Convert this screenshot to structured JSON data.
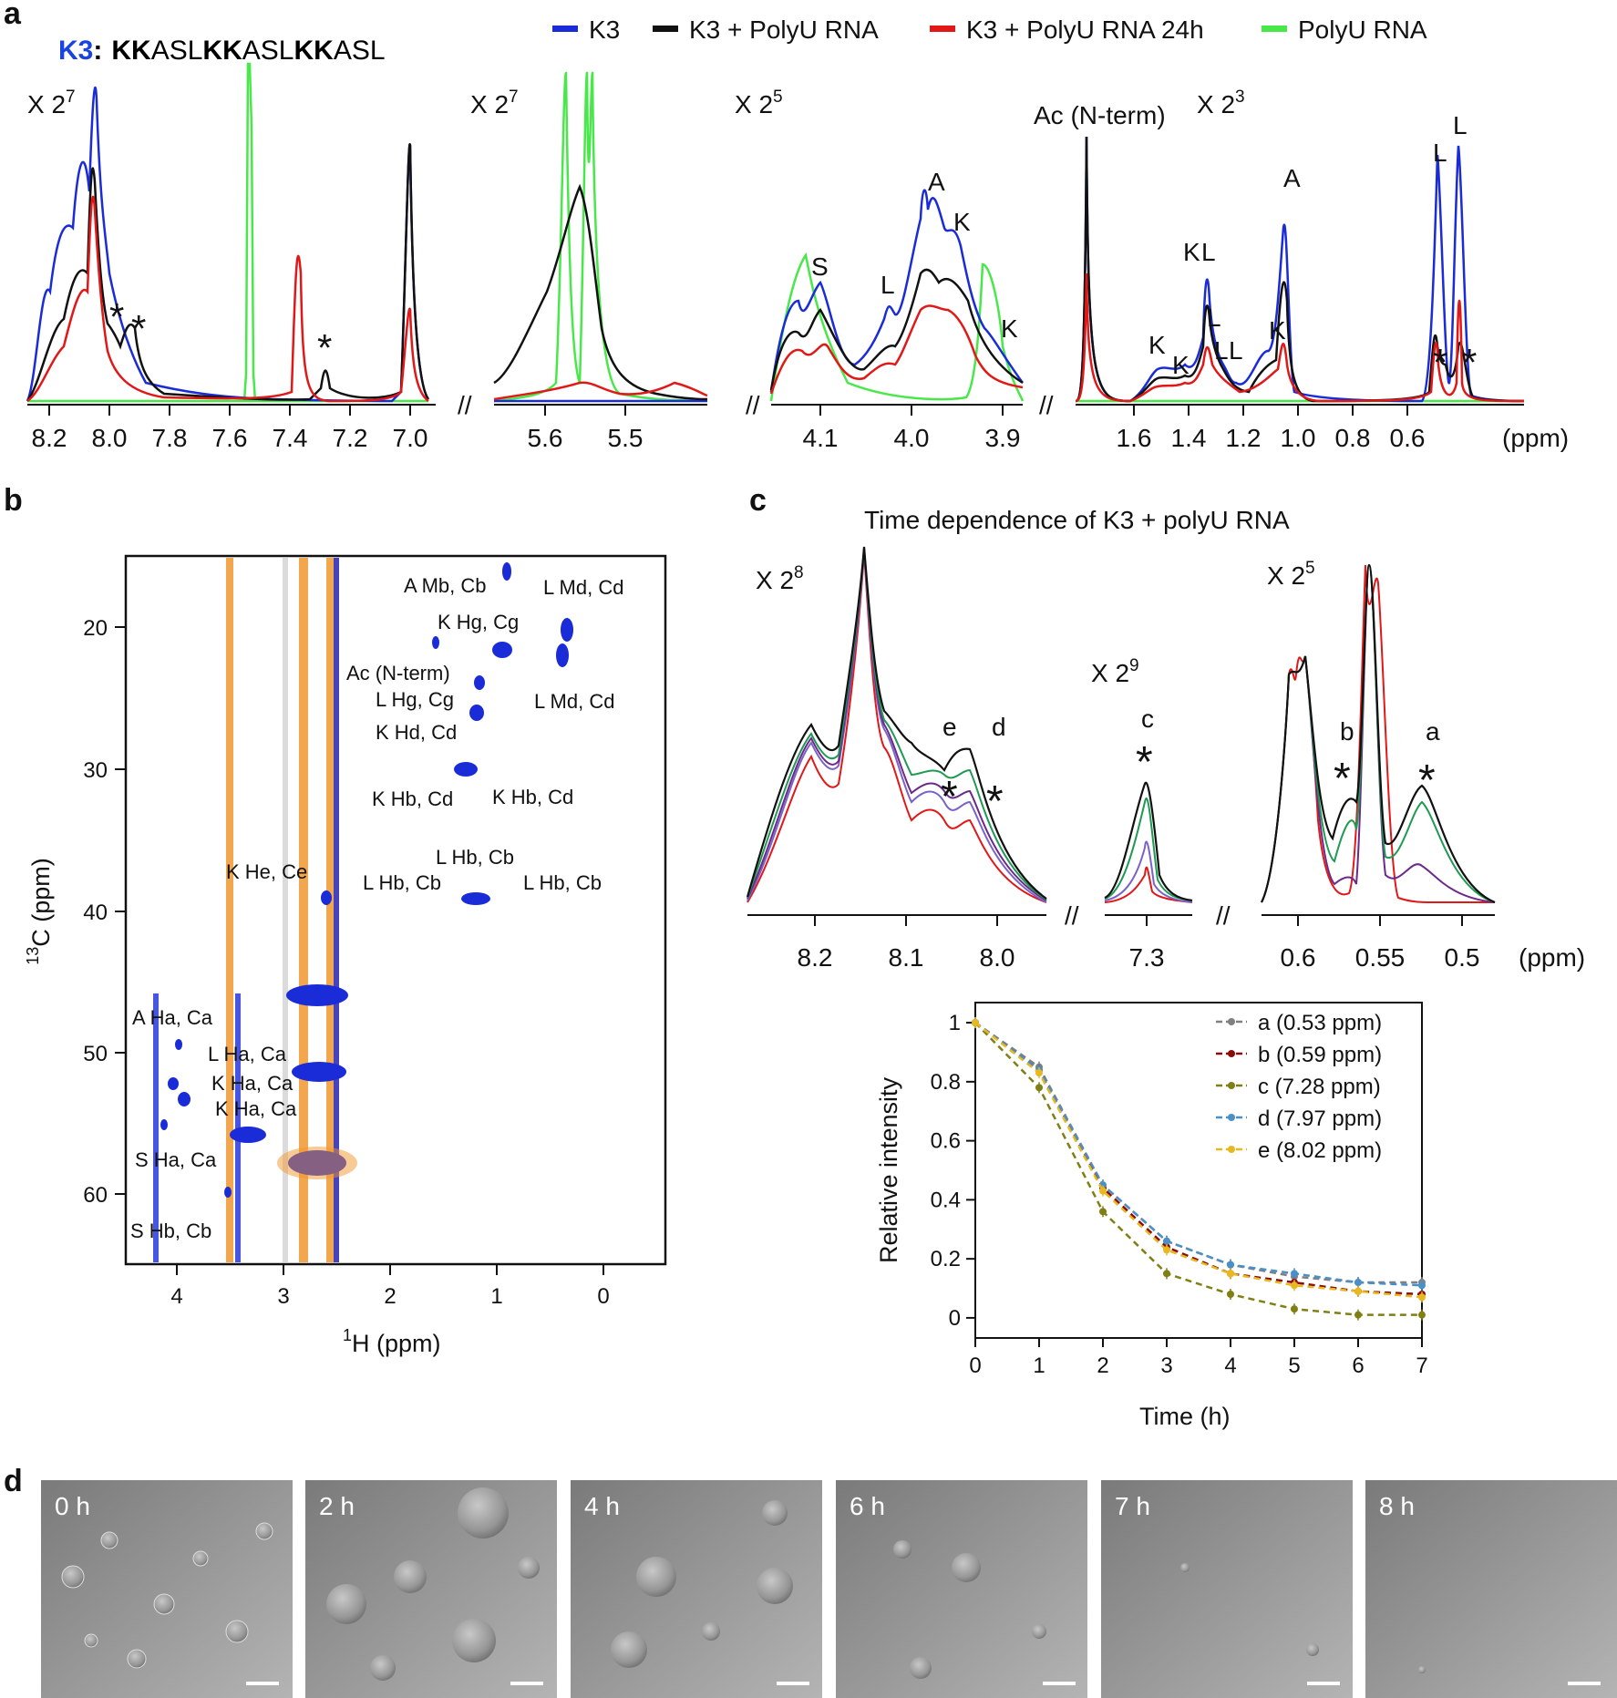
{
  "panel_labels": {
    "a": "a",
    "b": "b",
    "c": "c",
    "d": "d"
  },
  "colors": {
    "k3": "#1a2bd8",
    "k3_polyu": "#111111",
    "k3_polyu_24h": "#e01818",
    "polyu": "#49e84a",
    "orange": "#f0962e",
    "series_a": "#808080",
    "series_b": "#8b0a0a",
    "series_c": "#7f7f14",
    "series_d": "#4a90c8",
    "series_e": "#e8b820"
  },
  "panel_a": {
    "sequence_name": "K3",
    "sequence_colon": ":",
    "sequence": [
      "KK",
      "ASL",
      "KK",
      "ASL",
      "KK",
      "ASL"
    ],
    "legend": [
      "K3",
      "K3 + PolyU RNA",
      "K3 + PolyU RNA 24h",
      "PolyU RNA"
    ],
    "scale_labels": [
      {
        "base": "X 2",
        "exp": "7"
      },
      {
        "base": "X 2",
        "exp": "7"
      },
      {
        "base": "X 2",
        "exp": "5"
      },
      {
        "base": "X 2",
        "exp": "3"
      }
    ],
    "ac_label": "Ac (N-term)",
    "ppm_label": "(ppm)",
    "segment_ticks": [
      [
        "8.2",
        "8.0",
        "7.8",
        "7.6",
        "7.4",
        "7.2",
        "7.0"
      ],
      [
        "5.6",
        "5.5"
      ],
      [
        "4.1",
        "4.0",
        "3.9"
      ],
      [
        "1.6",
        "1.4",
        "1.2",
        "1.0",
        "0.8",
        "0.6"
      ]
    ],
    "residue_labels": [
      "S",
      "L",
      "A",
      "K",
      "K",
      "K",
      "K",
      "K",
      "L",
      "L",
      "L",
      "L",
      "K",
      "A",
      "L",
      "L"
    ],
    "star": "*"
  },
  "panel_b": {
    "xlabel_sup": "1",
    "xlabel": "H (ppm)",
    "ylabel_sup": "13",
    "ylabel": "C (ppm)",
    "xticks": [
      "4",
      "3",
      "2",
      "1",
      "0"
    ],
    "yticks": [
      "20",
      "30",
      "40",
      "50",
      "60"
    ],
    "labels": [
      "A Mb, Cb",
      "L Md, Cd",
      "K Hg, Cg",
      "Ac (N-term)",
      "L Hg, Cg",
      "L Md, Cd",
      "K Hd, Cd",
      "K Hb, Cd",
      "K Hb, Cd",
      "L Hb, Cb",
      "L Hb, Cb",
      "L Hb, Cb",
      "K He, Ce",
      "A Ha, Ca",
      "L Ha, Ca",
      "K Ha, Ca",
      "K Ha, Ca",
      "S Ha, Ca",
      "S Hb, Cb"
    ]
  },
  "panel_c": {
    "title": "Time dependence of K3 + polyU RNA",
    "scale_labels": [
      {
        "base": "X 2",
        "exp": "8"
      },
      {
        "base": "X 2",
        "exp": "9"
      },
      {
        "base": "X 2",
        "exp": "5"
      }
    ],
    "peak_letters": [
      "e",
      "d",
      "c",
      "b",
      "a"
    ],
    "spec_ticks": [
      "8.2",
      "8.1",
      "8.0",
      "7.3",
      "0.6",
      "0.55",
      "0.5"
    ],
    "ppm_label": "(ppm)"
  },
  "chart_data": [
    {
      "type": "line",
      "title": "",
      "xlabel": "Time (h)",
      "ylabel": "Relative intensity",
      "x": [
        0,
        1,
        2,
        3,
        4,
        5,
        6,
        7
      ],
      "xlim": [
        0,
        7
      ],
      "ylim": [
        0,
        1
      ],
      "xticks": [
        "0",
        "1",
        "2",
        "3",
        "4",
        "5",
        "6",
        "7"
      ],
      "yticks": [
        "0",
        "0.2",
        "0.4",
        "0.6",
        "0.8",
        "1"
      ],
      "legend_position": "top-right",
      "series": [
        {
          "name": "a (0.53 ppm)",
          "color": "#808080",
          "values": [
            1.0,
            0.85,
            0.45,
            0.26,
            0.18,
            0.14,
            0.12,
            0.12
          ]
        },
        {
          "name": "b (0.59 ppm)",
          "color": "#8b0a0a",
          "values": [
            1.0,
            0.84,
            0.44,
            0.24,
            0.15,
            0.12,
            0.09,
            0.08
          ]
        },
        {
          "name": "c (7.28 ppm)",
          "color": "#7f7f14",
          "values": [
            1.0,
            0.78,
            0.36,
            0.15,
            0.08,
            0.03,
            0.01,
            0.01
          ]
        },
        {
          "name": "d (7.97 ppm)",
          "color": "#4a90c8",
          "values": [
            1.0,
            0.84,
            0.45,
            0.26,
            0.18,
            0.15,
            0.12,
            0.11
          ]
        },
        {
          "name": "e (8.02 ppm)",
          "color": "#e8b820",
          "values": [
            1.0,
            0.83,
            0.43,
            0.23,
            0.15,
            0.11,
            0.09,
            0.07
          ]
        }
      ]
    }
  ],
  "panel_d": {
    "time_labels": [
      "0 h",
      "2 h",
      "4 h",
      "6 h",
      "7 h",
      "8 h"
    ]
  }
}
